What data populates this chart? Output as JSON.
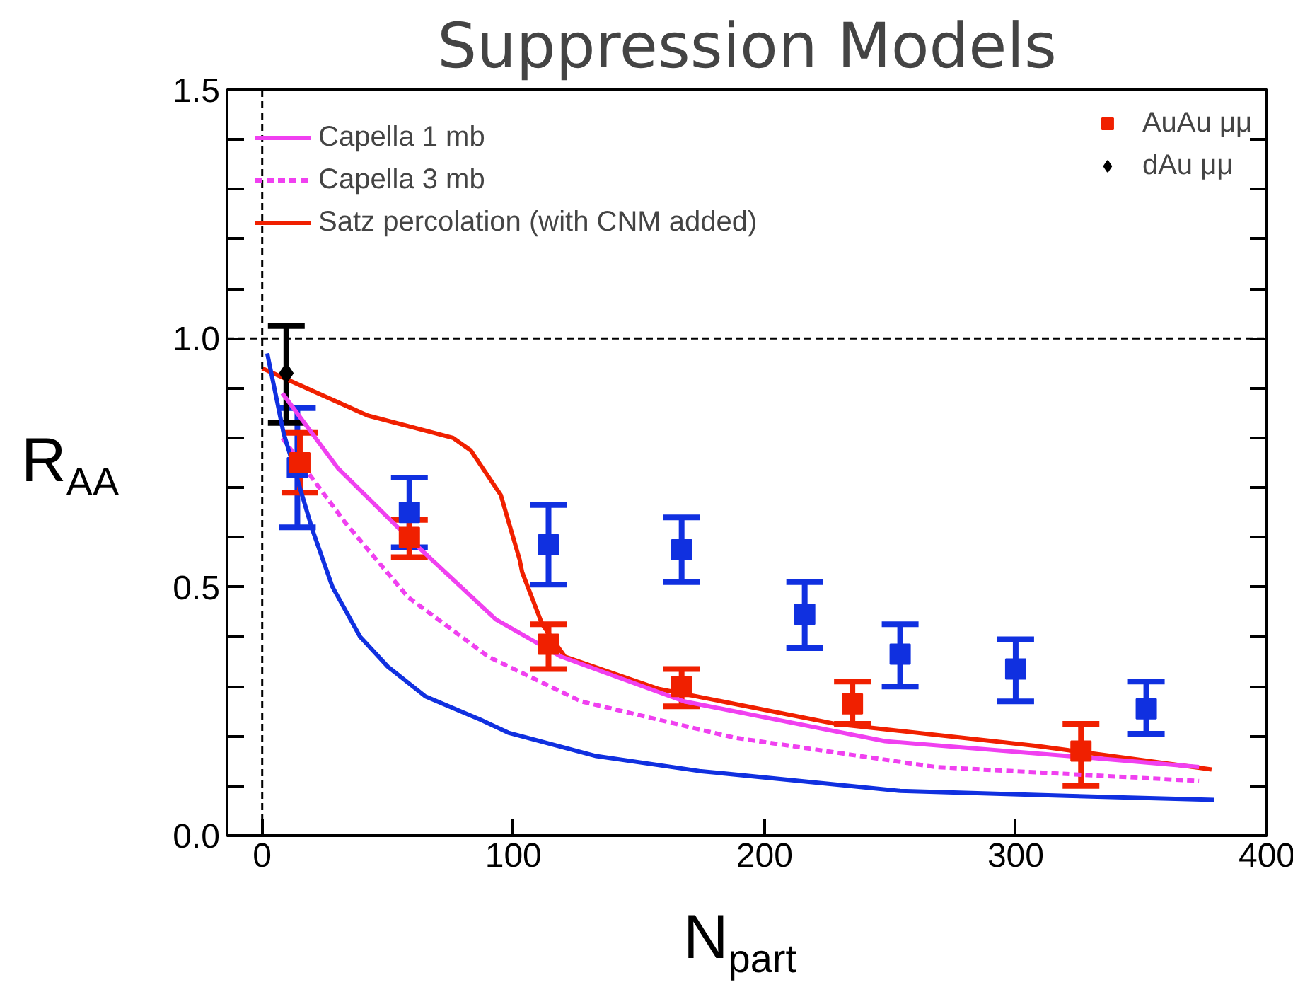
{
  "chart_data": {
    "type": "scatter",
    "title": "Suppression Models",
    "xlabel": "N$_{part}$",
    "ylabel": "R$_{AA}$",
    "xlim": [
      -14,
      400
    ],
    "ylim": [
      0,
      1.5
    ],
    "xticks": [
      0,
      100,
      200,
      300,
      400
    ],
    "yticks": [
      {
        "value": 0,
        "label": "0.0"
      },
      {
        "value": 0.1,
        "label": null
      },
      {
        "value": 0.2,
        "label": null
      },
      {
        "value": 0.3,
        "label": null
      },
      {
        "value": 0.4,
        "label": null
      },
      {
        "value": 0.5,
        "label": "0.5"
      },
      {
        "value": 0.6,
        "label": null
      },
      {
        "value": 0.7,
        "label": null
      },
      {
        "value": 0.8,
        "label": null
      },
      {
        "value": 0.9,
        "label": null
      },
      {
        "value": 1.0,
        "label": "1.0"
      },
      {
        "value": 1.1,
        "label": null
      },
      {
        "value": 1.2,
        "label": null
      },
      {
        "value": 1.3,
        "label": null
      },
      {
        "value": 1.4,
        "label": null
      },
      {
        "value": 1.5,
        "label": "1.5"
      }
    ],
    "grid": false,
    "legend": "top",
    "ref_lines": [
      {
        "axis": "y",
        "value": 1.0,
        "label": null,
        "color": "#000000",
        "line_style": "dashed"
      },
      {
        "axis": "x",
        "value": 0,
        "label": null,
        "color": "#000000",
        "line_style": "dashed"
      }
    ],
    "series": [
      {
        "type": "line",
        "color": "#1030e0",
        "line_style": "solid",
        "marker": "none",
        "x": [
          2,
          8.5,
          20,
          28,
          39,
          50,
          65,
          87,
          98,
          133,
          174,
          254,
          320,
          379
        ],
        "values": [
          0.97,
          0.81,
          0.615,
          0.5,
          0.4,
          0.34,
          0.28,
          0.233,
          0.207,
          0.16,
          0.13,
          0.09,
          0.08,
          0.072
        ]
      },
      {
        "type": "line",
        "name": "Capella 1 mb",
        "color": "#f040f0",
        "line_style": "solid",
        "marker": "none",
        "x": [
          8,
          30,
          58,
          93,
          119,
          168,
          248,
          329,
          373
        ],
        "values": [
          0.89,
          0.74,
          0.6,
          0.435,
          0.36,
          0.27,
          0.19,
          0.157,
          0.138
        ]
      },
      {
        "type": "line",
        "name": "Capella 3 mb",
        "color": "#f040f0",
        "line_style": "dashed",
        "marker": "none",
        "x": [
          8,
          33,
          58,
          90,
          127,
          188,
          268,
          373
        ],
        "values": [
          0.8,
          0.63,
          0.48,
          0.36,
          0.27,
          0.197,
          0.138,
          0.11
        ]
      },
      {
        "type": "line",
        "name": "Satz percolation (with CNM added)",
        "color": "#f02000",
        "line_style": "solid",
        "marker": "none",
        "x": [
          0,
          42,
          76,
          83,
          95,
          102.5,
          103.5,
          111.5,
          120.5,
          158,
          228,
          309,
          378
        ],
        "values": [
          0.94,
          0.845,
          0.8,
          0.775,
          0.685,
          0.555,
          0.53,
          0.425,
          0.36,
          0.295,
          0.225,
          0.18,
          0.133
        ]
      },
      {
        "color": "#1030e0",
        "marker": "square",
        "x": [
          14,
          58.6,
          114,
          167,
          216,
          254,
          300,
          352
        ],
        "values": [
          0.74,
          0.65,
          0.585,
          0.575,
          0.445,
          0.365,
          0.335,
          0.255
        ],
        "errors": [
          [
            0.62,
            0.86
          ],
          [
            0.58,
            0.72
          ],
          [
            0.505,
            0.665
          ],
          [
            0.51,
            0.64
          ],
          [
            0.377,
            0.51
          ],
          [
            0.3,
            0.425
          ],
          [
            0.27,
            0.395
          ],
          [
            0.205,
            0.31
          ]
        ]
      },
      {
        "name": "AuAu μμ",
        "color": "#f02000",
        "marker": "square",
        "x": [
          15,
          58.6,
          114,
          167,
          235,
          326
        ],
        "values": [
          0.75,
          0.6,
          0.385,
          0.3,
          0.265,
          0.17
        ],
        "errors": [
          [
            0.69,
            0.81
          ],
          [
            0.56,
            0.635
          ],
          [
            0.335,
            0.425
          ],
          [
            0.26,
            0.335
          ],
          [
            0.225,
            0.31
          ],
          [
            0.1,
            0.225
          ]
        ]
      },
      {
        "name": "dAu μμ",
        "color": "#000000",
        "marker": "diamond",
        "x": [
          9.6
        ],
        "values": [
          0.93
        ],
        "errors": [
          [
            0.83,
            1.025
          ]
        ]
      }
    ]
  }
}
